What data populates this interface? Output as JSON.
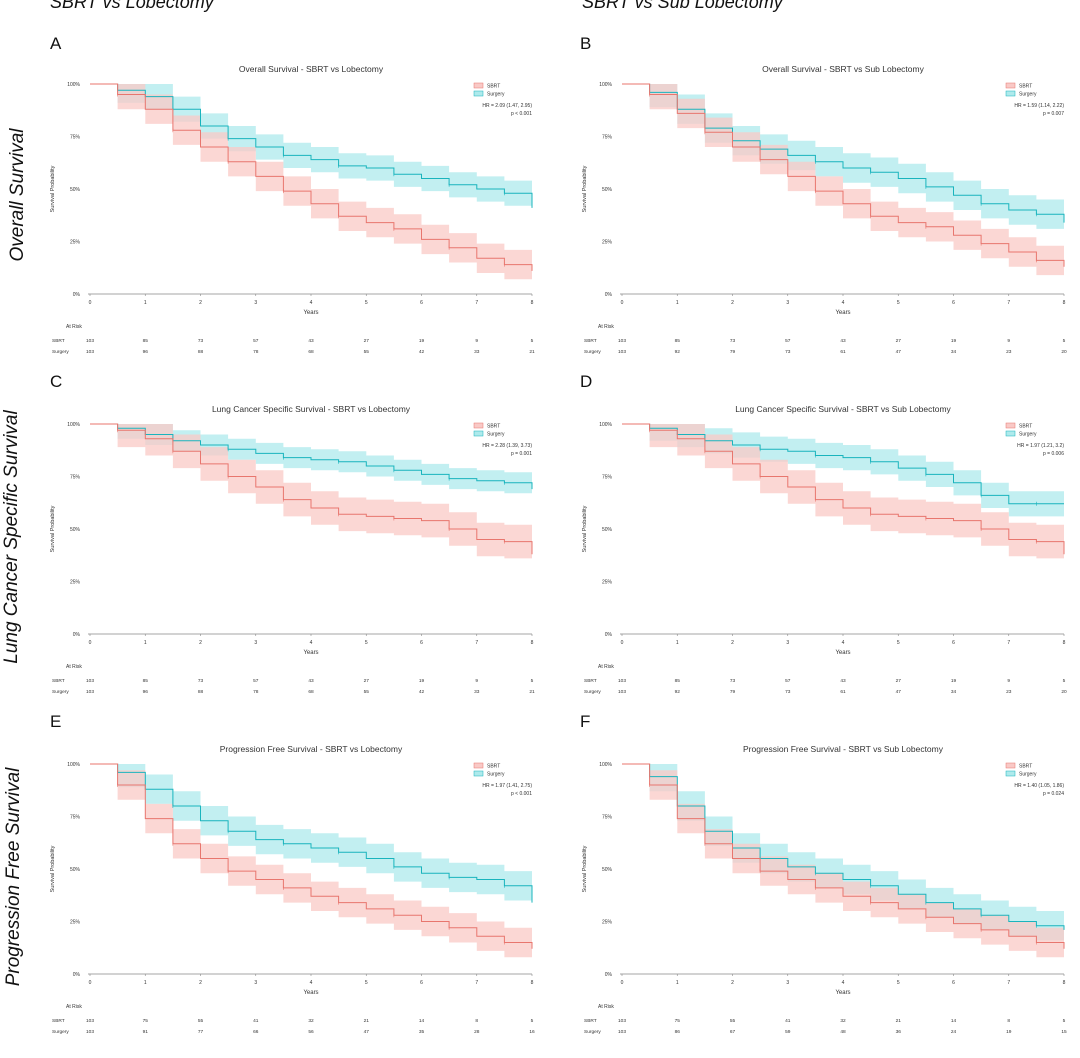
{
  "column_headers": [
    "SBRT vs Lobectomy",
    "SBRT vs Sub Lobectomy"
  ],
  "row_headers": [
    "Overall Survival",
    "Lung Cancer Specific Survival",
    "Progression Free Survival"
  ],
  "colors": {
    "sbrt_line": "#e8766e",
    "sbrt_band": "#f9c9c6",
    "surgery_line": "#19b4bd",
    "surgery_band": "#aeeaec",
    "axis": "#888888"
  },
  "chart_data": [
    {
      "panel": "A",
      "type": "line",
      "title": "Overall Survival - SBRT vs Lobectomy",
      "xlabel": "Years",
      "ylabel": "Survival Probability",
      "xlim": [
        0,
        8
      ],
      "ylim": [
        0,
        1
      ],
      "yticks": [
        "0%",
        "25%",
        "50%",
        "75%",
        "100%"
      ],
      "xticks": [
        "0",
        "1",
        "2",
        "3",
        "4",
        "5",
        "6",
        "7",
        "8"
      ],
      "legend": [
        "SBRT",
        "Surgery"
      ],
      "legend_position": "top-right",
      "stats": [
        "HR = 2.09 (1.47, 2.95)",
        "p < 0.001"
      ],
      "x": [
        0,
        0.5,
        1,
        1.5,
        2,
        2.5,
        3,
        3.5,
        4,
        4.5,
        5,
        5.5,
        6,
        6.5,
        7,
        7.5,
        8
      ],
      "series": [
        {
          "name": "SBRT",
          "values": [
            1.0,
            0.95,
            0.88,
            0.78,
            0.7,
            0.63,
            0.56,
            0.49,
            0.43,
            0.37,
            0.34,
            0.31,
            0.26,
            0.22,
            0.17,
            0.14,
            0.11
          ],
          "band": 0.07
        },
        {
          "name": "Surgery",
          "values": [
            1.0,
            0.97,
            0.94,
            0.88,
            0.8,
            0.74,
            0.7,
            0.66,
            0.64,
            0.61,
            0.6,
            0.57,
            0.55,
            0.52,
            0.5,
            0.48,
            0.41
          ],
          "band": 0.06
        }
      ],
      "risk_table": {
        "header": "At Risk",
        "rows": [
          {
            "label": "SBRT",
            "values": [
              "103",
              "85",
              "73",
              "57",
              "43",
              "27",
              "19",
              "9",
              "5"
            ]
          },
          {
            "label": "Surgery",
            "values": [
              "103",
              "96",
              "88",
              "78",
              "68",
              "55",
              "42",
              "33",
              "21"
            ]
          }
        ]
      }
    },
    {
      "panel": "B",
      "type": "line",
      "title": "Overall Survival - SBRT vs Sub Lobectomy",
      "xlabel": "Years",
      "ylabel": "Survival Probability",
      "xlim": [
        0,
        8
      ],
      "ylim": [
        0,
        1
      ],
      "yticks": [
        "0%",
        "25%",
        "50%",
        "75%",
        "100%"
      ],
      "xticks": [
        "0",
        "1",
        "2",
        "3",
        "4",
        "5",
        "6",
        "7",
        "8"
      ],
      "legend": [
        "SBRT",
        "Surgery"
      ],
      "legend_position": "top-right",
      "stats": [
        "HR = 1.59 (1.14, 2.22)",
        "p = 0.007"
      ],
      "x": [
        0,
        0.5,
        1,
        1.5,
        2,
        2.5,
        3,
        3.5,
        4,
        4.5,
        5,
        5.5,
        6,
        6.5,
        7,
        7.5,
        8
      ],
      "series": [
        {
          "name": "SBRT",
          "values": [
            1.0,
            0.95,
            0.86,
            0.77,
            0.7,
            0.64,
            0.56,
            0.49,
            0.43,
            0.37,
            0.34,
            0.32,
            0.28,
            0.24,
            0.2,
            0.16,
            0.13
          ],
          "band": 0.07
        },
        {
          "name": "Surgery",
          "values": [
            1.0,
            0.96,
            0.88,
            0.79,
            0.73,
            0.69,
            0.66,
            0.63,
            0.6,
            0.58,
            0.55,
            0.51,
            0.47,
            0.43,
            0.4,
            0.38,
            0.34
          ],
          "band": 0.07
        }
      ],
      "risk_table": {
        "header": "At Risk",
        "rows": [
          {
            "label": "SBRT",
            "values": [
              "103",
              "85",
              "73",
              "57",
              "43",
              "27",
              "19",
              "9",
              "5"
            ]
          },
          {
            "label": "Surgery",
            "values": [
              "103",
              "92",
              "79",
              "73",
              "61",
              "47",
              "34",
              "23",
              "20"
            ]
          }
        ]
      }
    },
    {
      "panel": "C",
      "type": "line",
      "title": "Lung Cancer Specific Survival - SBRT vs Lobectomy",
      "xlabel": "Years",
      "ylabel": "Survival Probability",
      "xlim": [
        0,
        8
      ],
      "ylim": [
        0,
        1
      ],
      "yticks": [
        "0%",
        "25%",
        "50%",
        "75%",
        "100%"
      ],
      "xticks": [
        "0",
        "1",
        "2",
        "3",
        "4",
        "5",
        "6",
        "7",
        "8"
      ],
      "legend": [
        "SBRT",
        "Surgery"
      ],
      "legend_position": "top-right",
      "stats": [
        "HR = 2.28 (1.39, 3.73)",
        "p = 0.001"
      ],
      "x": [
        0,
        0.5,
        1,
        1.5,
        2,
        2.5,
        3,
        3.5,
        4,
        4.5,
        5,
        5.5,
        6,
        6.5,
        7,
        7.5,
        8
      ],
      "series": [
        {
          "name": "SBRT",
          "values": [
            1.0,
            0.97,
            0.93,
            0.87,
            0.81,
            0.75,
            0.7,
            0.64,
            0.6,
            0.57,
            0.56,
            0.55,
            0.54,
            0.5,
            0.45,
            0.44,
            0.38
          ],
          "band": 0.08
        },
        {
          "name": "Surgery",
          "values": [
            1.0,
            0.98,
            0.95,
            0.92,
            0.9,
            0.88,
            0.86,
            0.84,
            0.83,
            0.82,
            0.8,
            0.78,
            0.76,
            0.74,
            0.73,
            0.72,
            0.69
          ],
          "band": 0.05
        }
      ],
      "risk_table": {
        "header": "At Risk",
        "rows": [
          {
            "label": "SBRT",
            "values": [
              "103",
              "85",
              "73",
              "57",
              "43",
              "27",
              "19",
              "9",
              "5"
            ]
          },
          {
            "label": "Surgery",
            "values": [
              "103",
              "96",
              "88",
              "78",
              "68",
              "55",
              "42",
              "33",
              "21"
            ]
          }
        ]
      }
    },
    {
      "panel": "D",
      "type": "line",
      "title": "Lung Cancer Specific Survival - SBRT vs Sub Lobectomy",
      "xlabel": "Years",
      "ylabel": "Survival Probability",
      "xlim": [
        0,
        8
      ],
      "ylim": [
        0,
        1
      ],
      "yticks": [
        "0%",
        "25%",
        "50%",
        "75%",
        "100%"
      ],
      "xticks": [
        "0",
        "1",
        "2",
        "3",
        "4",
        "5",
        "6",
        "7",
        "8"
      ],
      "legend": [
        "SBRT",
        "Surgery"
      ],
      "legend_position": "top-right",
      "stats": [
        "HR = 1.97 (1.21, 3.2)",
        "p = 0.006"
      ],
      "x": [
        0,
        0.5,
        1,
        1.5,
        2,
        2.5,
        3,
        3.5,
        4,
        4.5,
        5,
        5.5,
        6,
        6.5,
        7,
        7.5,
        8
      ],
      "series": [
        {
          "name": "SBRT",
          "values": [
            1.0,
            0.97,
            0.93,
            0.87,
            0.81,
            0.75,
            0.7,
            0.64,
            0.6,
            0.57,
            0.56,
            0.55,
            0.54,
            0.5,
            0.45,
            0.44,
            0.38
          ],
          "band": 0.08
        },
        {
          "name": "Surgery",
          "values": [
            1.0,
            0.98,
            0.95,
            0.92,
            0.9,
            0.88,
            0.87,
            0.85,
            0.84,
            0.82,
            0.79,
            0.76,
            0.72,
            0.66,
            0.62,
            0.62,
            0.62
          ],
          "band": 0.06
        }
      ],
      "risk_table": {
        "header": "At Risk",
        "rows": [
          {
            "label": "SBRT",
            "values": [
              "103",
              "85",
              "73",
              "57",
              "43",
              "27",
              "19",
              "9",
              "5"
            ]
          },
          {
            "label": "Surgery",
            "values": [
              "103",
              "92",
              "79",
              "73",
              "61",
              "47",
              "34",
              "23",
              "20"
            ]
          }
        ]
      }
    },
    {
      "panel": "E",
      "type": "line",
      "title": "Progression Free Survival - SBRT vs Lobectomy",
      "xlabel": "Years",
      "ylabel": "Survival Probability",
      "xlim": [
        0,
        8
      ],
      "ylim": [
        0,
        1
      ],
      "yticks": [
        "0%",
        "25%",
        "50%",
        "75%",
        "100%"
      ],
      "xticks": [
        "0",
        "1",
        "2",
        "3",
        "4",
        "5",
        "6",
        "7",
        "8"
      ],
      "legend": [
        "SBRT",
        "Surgery"
      ],
      "legend_position": "top-right",
      "stats": [
        "HR = 1.97 (1.41, 2.75)",
        "p < 0.001"
      ],
      "x": [
        0,
        0.5,
        1,
        1.5,
        2,
        2.5,
        3,
        3.5,
        4,
        4.5,
        5,
        5.5,
        6,
        6.5,
        7,
        7.5,
        8
      ],
      "series": [
        {
          "name": "SBRT",
          "values": [
            1.0,
            0.9,
            0.74,
            0.62,
            0.55,
            0.49,
            0.45,
            0.41,
            0.37,
            0.34,
            0.31,
            0.28,
            0.25,
            0.22,
            0.18,
            0.15,
            0.12
          ],
          "band": 0.07
        },
        {
          "name": "Surgery",
          "values": [
            1.0,
            0.96,
            0.88,
            0.8,
            0.73,
            0.68,
            0.64,
            0.62,
            0.6,
            0.58,
            0.55,
            0.51,
            0.48,
            0.46,
            0.45,
            0.42,
            0.34
          ],
          "band": 0.07
        }
      ],
      "risk_table": {
        "header": "At Risk",
        "rows": [
          {
            "label": "SBRT",
            "values": [
              "103",
              "75",
              "55",
              "41",
              "32",
              "21",
              "14",
              "8",
              "5"
            ]
          },
          {
            "label": "Surgery",
            "values": [
              "103",
              "91",
              "77",
              "66",
              "56",
              "47",
              "35",
              "28",
              "16"
            ]
          }
        ]
      }
    },
    {
      "panel": "F",
      "type": "line",
      "title": "Progression Free Survival - SBRT vs Sub Lobectomy",
      "xlabel": "Years",
      "ylabel": "Survival Probability",
      "xlim": [
        0,
        8
      ],
      "ylim": [
        0,
        1
      ],
      "yticks": [
        "0%",
        "25%",
        "50%",
        "75%",
        "100%"
      ],
      "xticks": [
        "0",
        "1",
        "2",
        "3",
        "4",
        "5",
        "6",
        "7",
        "8"
      ],
      "legend": [
        "SBRT",
        "Surgery"
      ],
      "legend_position": "top-right",
      "stats": [
        "HR = 1.40 (1.05, 1.86)",
        "p = 0.024"
      ],
      "x": [
        0,
        0.5,
        1,
        1.5,
        2,
        2.5,
        3,
        3.5,
        4,
        4.5,
        5,
        5.5,
        6,
        6.5,
        7,
        7.5,
        8
      ],
      "series": [
        {
          "name": "SBRT",
          "values": [
            1.0,
            0.9,
            0.74,
            0.62,
            0.55,
            0.49,
            0.45,
            0.41,
            0.37,
            0.34,
            0.31,
            0.27,
            0.24,
            0.21,
            0.18,
            0.15,
            0.12
          ],
          "band": 0.07
        },
        {
          "name": "Surgery",
          "values": [
            1.0,
            0.94,
            0.8,
            0.68,
            0.6,
            0.55,
            0.51,
            0.48,
            0.45,
            0.42,
            0.38,
            0.34,
            0.31,
            0.28,
            0.25,
            0.23,
            0.21
          ],
          "band": 0.07
        }
      ],
      "risk_table": {
        "header": "At Risk",
        "rows": [
          {
            "label": "SBRT",
            "values": [
              "103",
              "75",
              "55",
              "41",
              "32",
              "21",
              "14",
              "8",
              "5"
            ]
          },
          {
            "label": "Surgery",
            "values": [
              "103",
              "86",
              "67",
              "59",
              "48",
              "36",
              "24",
              "19",
              "15"
            ]
          }
        ]
      }
    }
  ]
}
